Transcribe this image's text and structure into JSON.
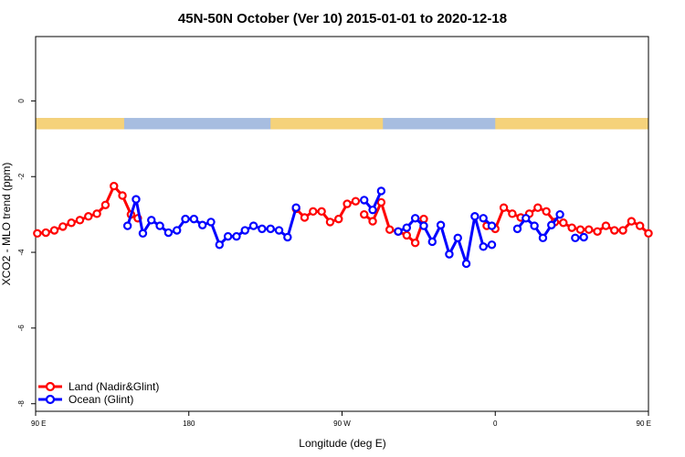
{
  "chart_data": {
    "type": "line",
    "title": "45N-50N October (Ver 10)   2015-01-01 to 2020-12-18",
    "xlabel": "Longitude (deg E)",
    "ylabel": "XCO2 - MLO trend (ppm)",
    "xlim": [
      90,
      450
    ],
    "ylim": [
      -8.2,
      1.7
    ],
    "x_ticks": [
      {
        "value": 90,
        "label": "90 E"
      },
      {
        "value": 180,
        "label": "180"
      },
      {
        "value": 270,
        "label": "90 W"
      },
      {
        "value": 360,
        "label": "0"
      },
      {
        "value": 450,
        "label": "90 E"
      },
      {
        "value": 540,
        "label": "180"
      }
    ],
    "y_ticks": [
      {
        "value": 0,
        "label": "0"
      },
      {
        "value": -2,
        "label": "-2"
      },
      {
        "value": -4,
        "label": "-4"
      },
      {
        "value": -6,
        "label": "-6"
      },
      {
        "value": -8,
        "label": "-8"
      }
    ],
    "grid": false,
    "legend_position": "bottom-left",
    "surface_band": {
      "colors": {
        "land": "#f5d27a",
        "ocean": "#a7bde0"
      },
      "land_segments": [
        [
          90,
          142
        ],
        [
          228,
          294
        ],
        [
          360,
          498
        ],
        [
          577,
          590
        ]
      ]
    },
    "series": [
      {
        "name": "Land (Nadir&Glint)",
        "color": "#ff0000",
        "points": [
          [
            91,
            -3.5
          ],
          [
            96,
            -3.48
          ],
          [
            101,
            -3.42
          ],
          [
            106,
            -3.32
          ],
          [
            111,
            -3.22
          ],
          [
            116,
            -3.15
          ],
          [
            121,
            -3.05
          ],
          [
            126,
            -2.98
          ],
          [
            131,
            -2.75
          ],
          [
            136,
            -2.25
          ],
          [
            141,
            -2.5
          ],
          [
            146,
            -3.0
          ],
          [
            150,
            -3.1
          ],
          null,
          [
            243,
            -2.85
          ],
          [
            248,
            -3.08
          ],
          [
            253,
            -2.92
          ],
          [
            258,
            -2.92
          ],
          [
            263,
            -3.2
          ],
          [
            268,
            -3.12
          ],
          [
            273,
            -2.72
          ],
          [
            278,
            -2.65
          ],
          null,
          [
            283,
            -3.0
          ],
          [
            288,
            -3.18
          ],
          [
            293,
            -2.68
          ],
          [
            298,
            -3.4
          ],
          [
            303,
            -3.45
          ],
          [
            308,
            -3.55
          ],
          [
            313,
            -3.75
          ],
          [
            318,
            -3.12
          ],
          null,
          [
            355,
            -3.3
          ],
          [
            360,
            -3.38
          ],
          [
            365,
            -2.82
          ],
          [
            370,
            -2.98
          ],
          [
            375,
            -3.08
          ],
          [
            380,
            -2.98
          ],
          [
            385,
            -2.82
          ],
          [
            390,
            -2.92
          ],
          [
            395,
            -3.2
          ],
          [
            400,
            -3.22
          ],
          [
            405,
            -3.35
          ],
          [
            410,
            -3.4
          ],
          [
            415,
            -3.4
          ],
          [
            420,
            -3.45
          ],
          [
            425,
            -3.3
          ],
          [
            430,
            -3.42
          ],
          [
            435,
            -3.42
          ],
          [
            440,
            -3.18
          ],
          [
            445,
            -3.3
          ],
          [
            450,
            -3.5
          ]
        ]
      },
      {
        "name": "Ocean (Glint)",
        "color": "#0000ff",
        "points": [
          [
            144,
            -3.3
          ],
          [
            149,
            -2.6
          ],
          [
            153,
            -3.5
          ],
          [
            158,
            -3.15
          ],
          [
            163,
            -3.3
          ],
          [
            168,
            -3.48
          ],
          [
            173,
            -3.42
          ],
          [
            178,
            -3.12
          ],
          [
            183,
            -3.12
          ],
          [
            188,
            -3.28
          ],
          [
            193,
            -3.2
          ],
          [
            198,
            -3.8
          ],
          [
            203,
            -3.58
          ],
          [
            208,
            -3.58
          ],
          [
            213,
            -3.42
          ],
          [
            218,
            -3.3
          ],
          [
            223,
            -3.38
          ],
          [
            228,
            -3.38
          ],
          [
            233,
            -3.42
          ],
          [
            238,
            -3.6
          ],
          [
            243,
            -2.82
          ],
          null,
          [
            283,
            -2.62
          ],
          [
            288,
            -2.88
          ],
          [
            293,
            -2.38
          ],
          null,
          [
            303,
            -3.45
          ],
          [
            308,
            -3.35
          ],
          [
            313,
            -3.1
          ],
          [
            318,
            -3.3
          ],
          [
            323,
            -3.72
          ],
          [
            328,
            -3.28
          ],
          [
            333,
            -4.05
          ],
          [
            338,
            -3.62
          ],
          [
            343,
            -4.3
          ],
          [
            348,
            -3.05
          ],
          [
            353,
            -3.85
          ],
          [
            358,
            -3.8
          ],
          null,
          [
            353,
            -3.1
          ],
          [
            358,
            -3.3
          ],
          null,
          [
            373,
            -3.38
          ],
          [
            378,
            -3.1
          ],
          [
            383,
            -3.3
          ],
          [
            388,
            -3.62
          ],
          [
            393,
            -3.28
          ],
          [
            398,
            -3.0
          ],
          null,
          [
            407,
            -3.62
          ],
          [
            412,
            -3.6
          ]
        ]
      }
    ]
  }
}
